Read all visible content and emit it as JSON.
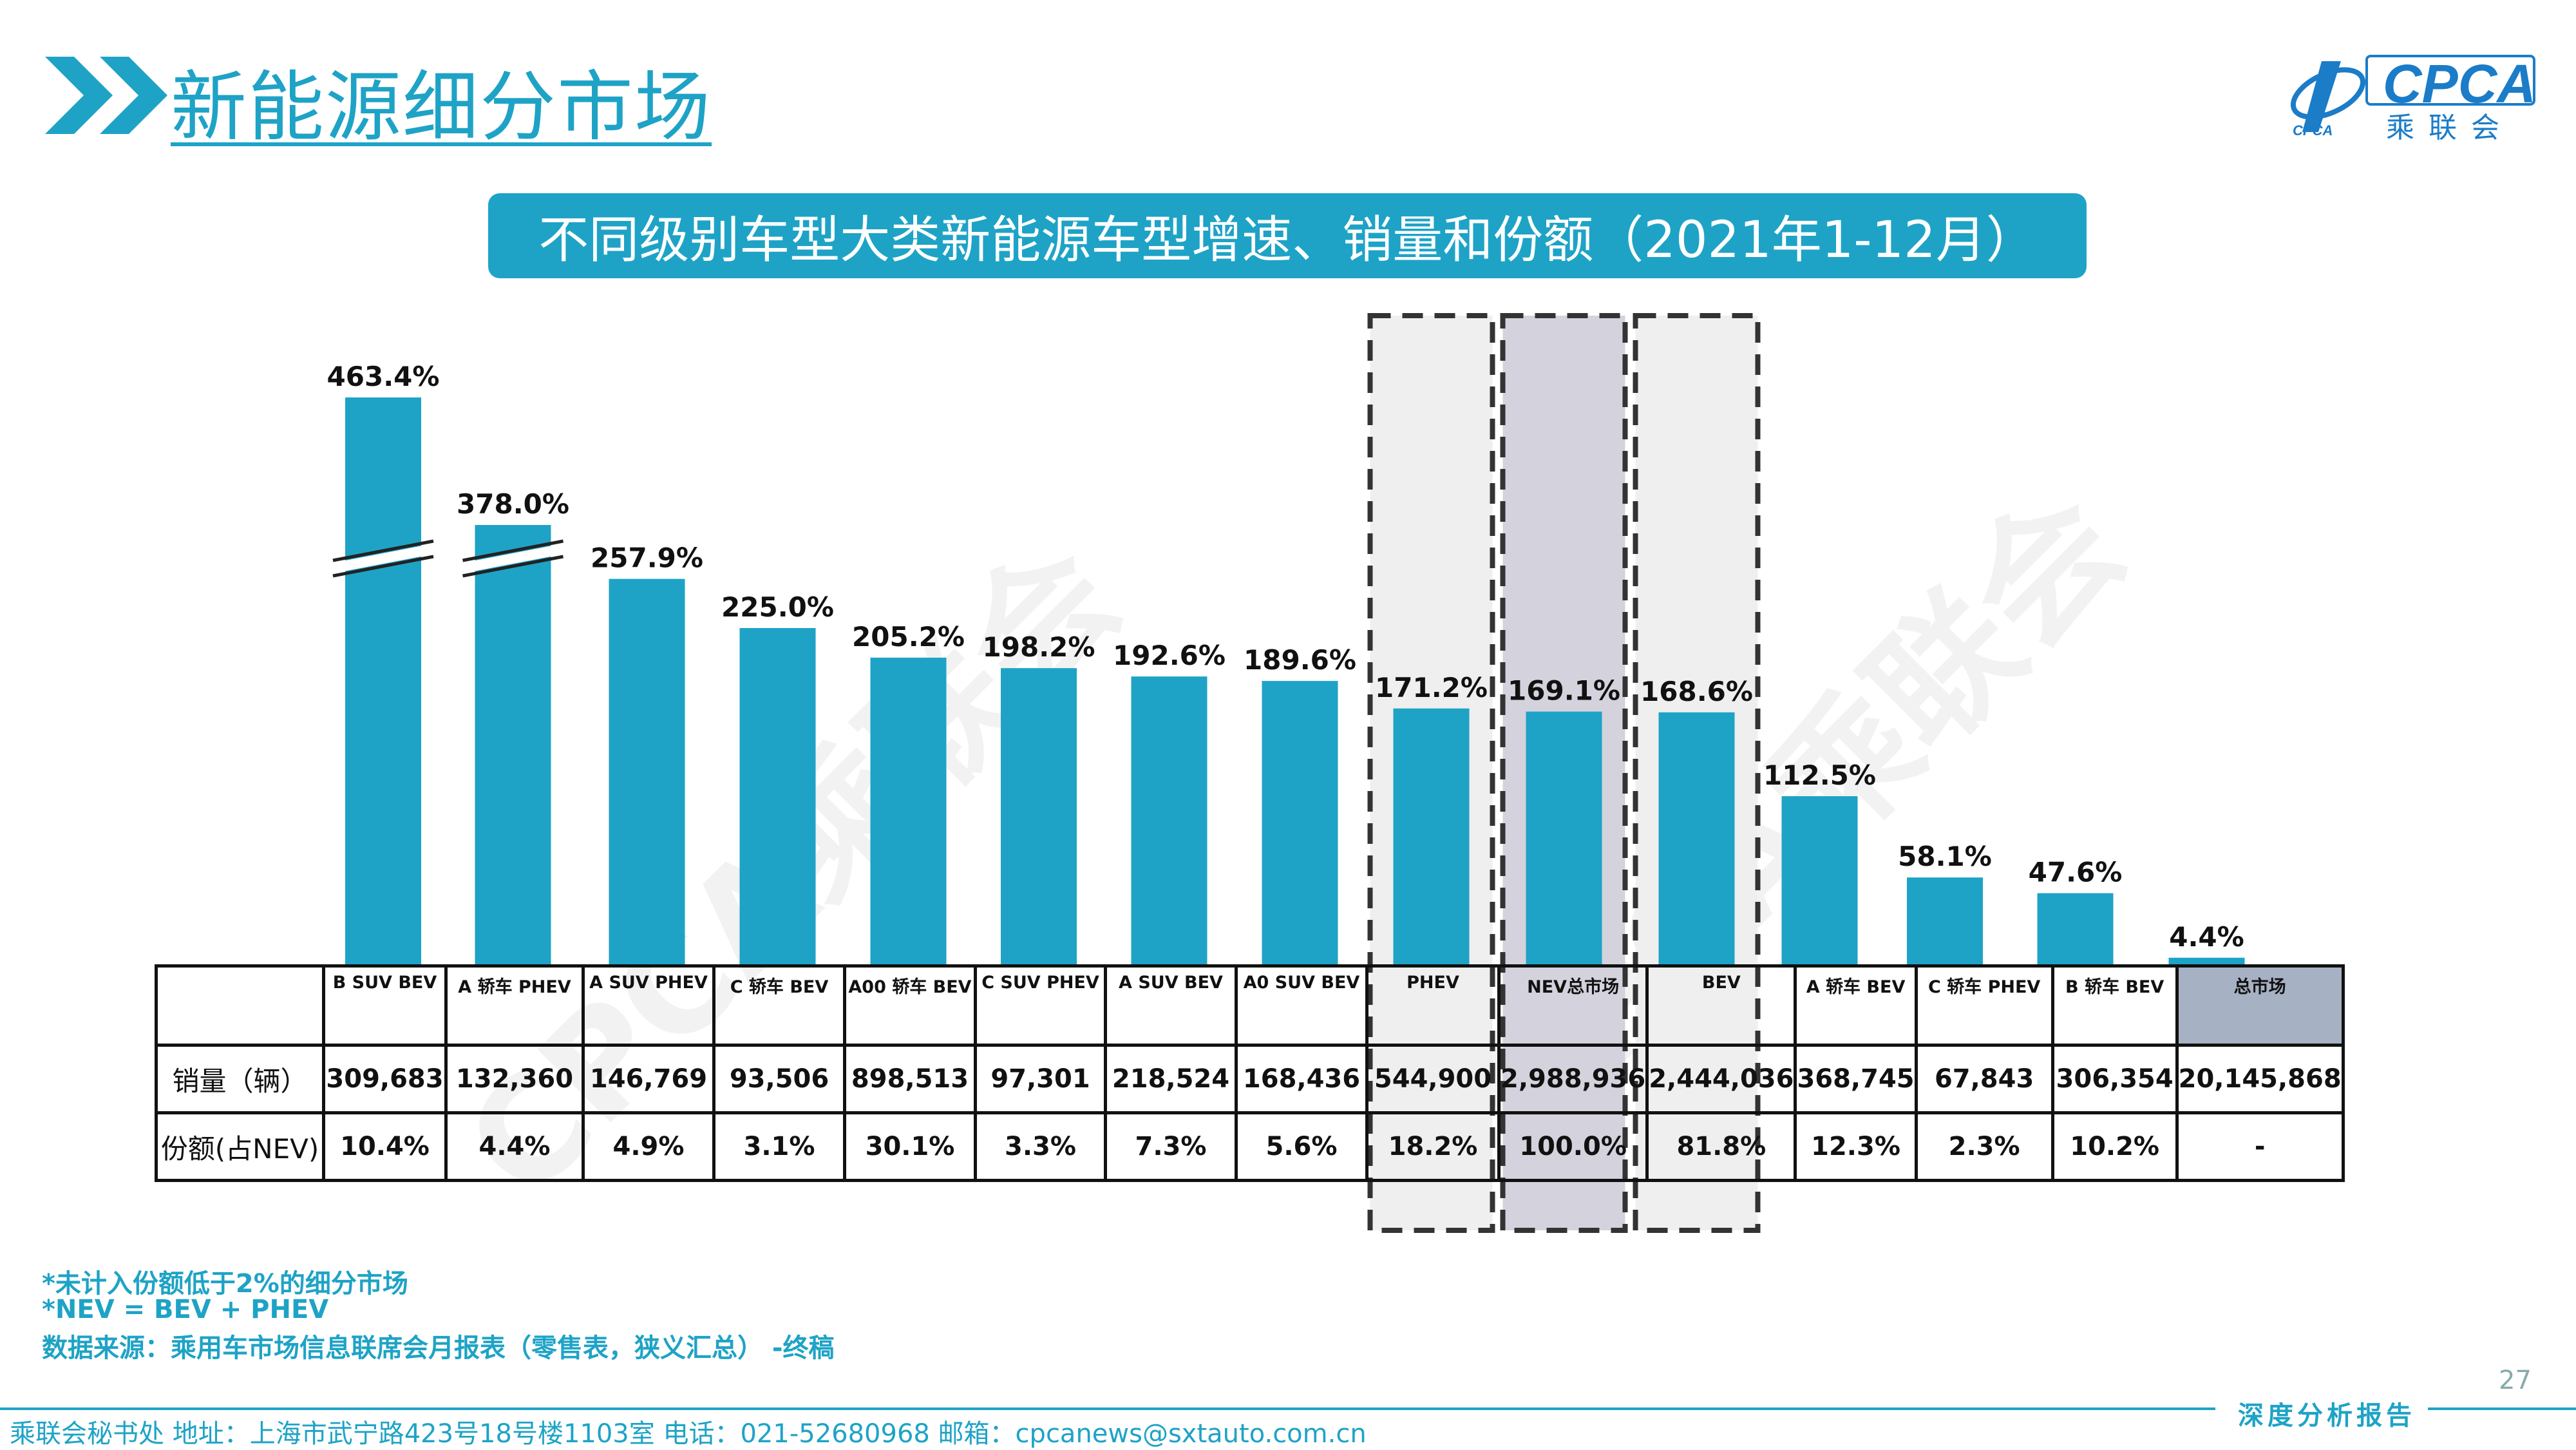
{
  "header": {
    "page_title": "新能源细分市场",
    "logo_text": "CPCA",
    "logo_sub": "乘联会",
    "logo_small": "CPCA",
    "icon": "double-chevron-icon"
  },
  "subtitle": "不同级别车型大类新能源车型增速、销量和份额（2021年1-12月）",
  "chart_data": {
    "type": "bar",
    "categories": [
      "B SUV BEV",
      "A 轿车 PHEV",
      "A SUV PHEV",
      "C 轿车 BEV",
      "A00 轿车 BEV",
      "C SUV PHEV",
      "A SUV BEV",
      "A0 SUV BEV",
      "PHEV",
      "NEV总市场",
      "BEV",
      "A 轿车 BEV",
      "C 轿车 PHEV",
      "B 轿车 BEV",
      "总市场"
    ],
    "series": [
      {
        "values": [
          463.4,
          378.0,
          257.9,
          225.0,
          205.2,
          198.2,
          192.6,
          189.6,
          171.2,
          169.1,
          168.6,
          112.5,
          58.1,
          47.6,
          4.4
        ]
      }
    ],
    "value_labels": [
      "463.4%",
      "378.0%",
      "257.9%",
      "225.0%",
      "205.2%",
      "198.2%",
      "192.6%",
      "189.6%",
      "171.2%",
      "169.1%",
      "168.6%",
      "112.5%",
      "58.1%",
      "47.6%",
      "4.4%"
    ],
    "axis_break_categories": [
      "B SUV BEV",
      "A 轿车 PHEV"
    ],
    "highlighted_categories": [
      "PHEV",
      "NEV总市场",
      "BEV"
    ],
    "bar_color": "#1ea3c6"
  },
  "table": {
    "row_labels": [
      "销量（辆）",
      "份额(占NEV)"
    ],
    "sales": [
      "309,683",
      "132,360",
      "146,769",
      "93,506",
      "898,513",
      "97,301",
      "218,524",
      "168,436",
      "544,900",
      "2,988,936",
      "2,444,036",
      "368,745",
      "67,843",
      "306,354",
      "20,145,868"
    ],
    "shares": [
      "10.4%",
      "4.4%",
      "4.9%",
      "3.1%",
      "30.1%",
      "3.3%",
      "7.3%",
      "5.6%",
      "18.2%",
      "100.0%",
      "81.8%",
      "12.3%",
      "2.3%",
      "10.2%",
      "-"
    ]
  },
  "footnotes": [
    "*未计入份额低于2%的细分市场",
    "*NEV = BEV + PHEV",
    "数据来源：乘用车市场信息联席会月报表（零售表，狭义汇总） -终稿"
  ],
  "watermark": "CPCA乘联会",
  "page_number": "27",
  "footer": {
    "contact": "乘联会秘书处   地址：上海市武宁路423号18号楼1103室  电话：021-52680968   邮箱：cpcanews@sxtauto.com.cn",
    "report_label": "深度分析报告"
  }
}
